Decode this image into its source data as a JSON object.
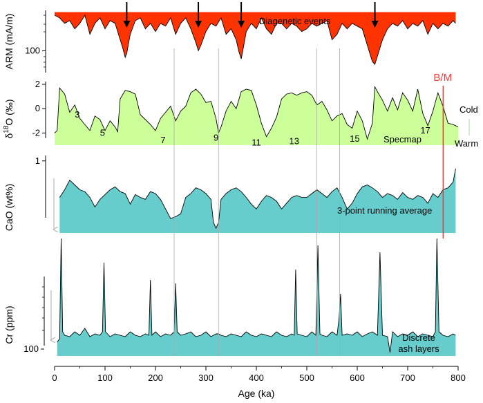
{
  "chart_data": [
    {
      "type": "area",
      "ylabel": "ARM (mA/m)",
      "annotation": "Diagenetic events",
      "fill_color": "#ff3300",
      "yticks": [
        100
      ],
      "diagenetic_event_ages": [
        143,
        285,
        370,
        635
      ],
      "x": [
        0,
        10,
        20,
        30,
        40,
        50,
        60,
        70,
        80,
        90,
        100,
        110,
        120,
        130,
        135,
        140,
        143,
        150,
        160,
        170,
        180,
        190,
        200,
        210,
        220,
        230,
        240,
        250,
        260,
        270,
        280,
        285,
        290,
        300,
        310,
        320,
        330,
        340,
        350,
        360,
        365,
        370,
        375,
        380,
        390,
        400,
        410,
        420,
        430,
        440,
        450,
        460,
        470,
        480,
        490,
        500,
        510,
        520,
        530,
        540,
        550,
        560,
        570,
        580,
        590,
        600,
        610,
        620,
        630,
        635,
        640,
        650,
        660,
        670,
        680,
        690,
        700,
        710,
        720,
        730,
        740,
        750,
        760,
        770,
        780,
        790,
        795
      ],
      "values": [
        165,
        160,
        150,
        155,
        140,
        150,
        165,
        130,
        150,
        160,
        140,
        155,
        150,
        120,
        105,
        88,
        95,
        130,
        155,
        160,
        140,
        150,
        135,
        150,
        145,
        160,
        130,
        150,
        160,
        140,
        115,
        100,
        110,
        135,
        150,
        145,
        160,
        130,
        140,
        120,
        100,
        85,
        110,
        135,
        150,
        140,
        160,
        140,
        130,
        150,
        150,
        140,
        150,
        145,
        135,
        140,
        150,
        145,
        150,
        155,
        120,
        130,
        150,
        140,
        150,
        145,
        140,
        110,
        80,
        75,
        90,
        120,
        140,
        150,
        145,
        155,
        140,
        150,
        145,
        155,
        130,
        150,
        140,
        150,
        145,
        155,
        150
      ]
    },
    {
      "type": "area",
      "ylabel": "δ18O (‰)",
      "series_label": "Specmap",
      "fill_color": "#ccff99",
      "ylim": [
        -3,
        2
      ],
      "yticks": [
        2,
        0,
        -2
      ],
      "stage_labels": [
        {
          "label": "3",
          "x": 45,
          "y": -0.5
        },
        {
          "label": "5",
          "x": 95,
          "y": -2
        },
        {
          "label": "7",
          "x": 215,
          "y": -2.6
        },
        {
          "label": "9",
          "x": 320,
          "y": -2.4
        },
        {
          "label": "11",
          "x": 400,
          "y": -2.8
        },
        {
          "label": "13",
          "x": 475,
          "y": -2.7
        },
        {
          "label": "15",
          "x": 595,
          "y": -2.5
        },
        {
          "label": "17",
          "x": 735,
          "y": -1.8
        }
      ],
      "scale_labels": [
        "Cold",
        "Warm"
      ],
      "boundary_label": "B/M",
      "boundary_age": 780,
      "boundary_color": "#ff3333",
      "x": [
        0,
        5,
        10,
        20,
        30,
        40,
        50,
        60,
        70,
        80,
        90,
        100,
        110,
        120,
        125,
        130,
        140,
        150,
        160,
        170,
        180,
        190,
        200,
        210,
        220,
        230,
        240,
        250,
        260,
        270,
        280,
        290,
        300,
        310,
        320,
        325,
        330,
        340,
        350,
        360,
        370,
        380,
        390,
        400,
        410,
        420,
        430,
        440,
        450,
        460,
        470,
        480,
        490,
        500,
        510,
        520,
        530,
        540,
        550,
        560,
        570,
        580,
        590,
        600,
        610,
        620,
        630,
        635,
        640,
        650,
        660,
        670,
        680,
        690,
        700,
        710,
        720,
        730,
        740,
        750,
        760,
        770,
        780,
        790,
        800
      ],
      "values": [
        -2,
        -1.8,
        1.7,
        1.2,
        -0.3,
        0.3,
        -0.8,
        -1.3,
        -1.8,
        -0.6,
        -0.9,
        -1.8,
        -1,
        -1.5,
        -1.9,
        0.8,
        1.5,
        1.4,
        1.2,
        -0.5,
        -0.9,
        -1.3,
        -1.8,
        -0.8,
        -0.3,
        0.2,
        -1,
        -0.2,
        0.2,
        1.3,
        1.6,
        1.2,
        0.5,
        0.6,
        -0.8,
        -2,
        -1.5,
        -0.2,
        0.6,
        0,
        1.4,
        1.6,
        1.5,
        0.3,
        -1.2,
        -2.3,
        -1.6,
        -0.7,
        0.8,
        1.2,
        1.3,
        1.1,
        1.3,
        1.4,
        1.1,
        0.3,
        0.6,
        -0.1,
        -1,
        -0.6,
        -0.4,
        -1.3,
        -1.6,
        -0.2,
        -1,
        -2.5,
        -1.2,
        1.8,
        1.4,
        0.7,
        -0.2,
        0.9,
        -0.1,
        1.3,
        0.7,
        -0.2,
        1.6,
        -0.4,
        -1.4,
        -0.2,
        1.3,
        0.2,
        -1.2,
        -1.3,
        -1.5
      ]
    },
    {
      "type": "area",
      "ylabel": "CaO (wt%)",
      "series_label": "3-point running average",
      "fill_color": "#66cccc",
      "yticks": [
        1
      ],
      "x": [
        10,
        20,
        30,
        40,
        50,
        60,
        70,
        80,
        90,
        100,
        110,
        120,
        130,
        140,
        150,
        160,
        170,
        180,
        190,
        200,
        210,
        220,
        230,
        240,
        250,
        260,
        270,
        280,
        290,
        300,
        310,
        315,
        320,
        325,
        330,
        340,
        350,
        360,
        370,
        380,
        390,
        400,
        410,
        420,
        430,
        440,
        450,
        460,
        470,
        480,
        490,
        500,
        510,
        520,
        530,
        540,
        550,
        560,
        570,
        580,
        590,
        600,
        610,
        620,
        630,
        640,
        650,
        660,
        670,
        680,
        690,
        700,
        710,
        720,
        730,
        740,
        750,
        760,
        770,
        780,
        790,
        795
      ],
      "values": [
        0.62,
        0.7,
        0.8,
        0.75,
        0.7,
        0.68,
        0.62,
        0.52,
        0.6,
        0.65,
        0.7,
        0.73,
        0.68,
        0.66,
        0.55,
        0.65,
        0.62,
        0.6,
        0.68,
        0.66,
        0.6,
        0.5,
        0.4,
        0.42,
        0.45,
        0.62,
        0.66,
        0.72,
        0.7,
        0.66,
        0.6,
        0.36,
        0.3,
        0.36,
        0.6,
        0.66,
        0.7,
        0.72,
        0.68,
        0.62,
        0.55,
        0.5,
        0.58,
        0.64,
        0.62,
        0.58,
        0.5,
        0.56,
        0.62,
        0.64,
        0.62,
        0.62,
        0.66,
        0.7,
        0.66,
        0.62,
        0.68,
        0.72,
        0.62,
        0.5,
        0.56,
        0.66,
        0.73,
        0.75,
        0.72,
        0.68,
        0.62,
        0.66,
        0.64,
        0.6,
        0.67,
        0.62,
        0.6,
        0.64,
        0.62,
        0.56,
        0.66,
        0.62,
        0.7,
        0.72,
        0.78,
        0.92
      ]
    },
    {
      "type": "area",
      "ylabel": "Cr (ppm)",
      "annotation": "Discrete ash layers",
      "fill_color": "#66cccc",
      "yticks": [
        100
      ],
      "x": [
        5,
        10,
        13,
        16,
        20,
        30,
        40,
        50,
        60,
        70,
        80,
        90,
        95,
        98,
        101,
        110,
        120,
        130,
        140,
        150,
        160,
        170,
        180,
        187,
        190,
        193,
        200,
        210,
        220,
        230,
        237,
        240,
        243,
        250,
        260,
        270,
        280,
        290,
        300,
        310,
        320,
        325,
        330,
        340,
        350,
        360,
        370,
        380,
        390,
        400,
        410,
        420,
        430,
        440,
        450,
        460,
        470,
        475,
        478,
        481,
        490,
        500,
        510,
        518,
        522,
        526,
        530,
        540,
        550,
        560,
        564,
        567,
        570,
        580,
        590,
        600,
        610,
        620,
        630,
        640,
        645,
        650,
        660,
        665,
        670,
        680,
        690,
        700,
        710,
        720,
        730,
        740,
        750,
        755,
        758,
        762,
        770,
        780,
        790,
        795
      ],
      "values": [
        110,
        115,
        260,
        125,
        120,
        118,
        125,
        120,
        130,
        118,
        122,
        120,
        125,
        225,
        125,
        118,
        122,
        120,
        118,
        125,
        120,
        118,
        122,
        120,
        200,
        120,
        125,
        118,
        122,
        120,
        125,
        195,
        125,
        120,
        122,
        125,
        118,
        120,
        125,
        118,
        122,
        122,
        120,
        118,
        122,
        120,
        118,
        125,
        120,
        118,
        122,
        120,
        118,
        125,
        120,
        118,
        122,
        120,
        215,
        122,
        120,
        118,
        125,
        120,
        250,
        122,
        120,
        118,
        125,
        120,
        145,
        180,
        120,
        122,
        120,
        125,
        118,
        122,
        125,
        120,
        240,
        120,
        118,
        95,
        125,
        118,
        122,
        120,
        125,
        118,
        122,
        120,
        118,
        125,
        260,
        125,
        120,
        118,
        122,
        120
      ]
    }
  ],
  "x_axis": {
    "label": "Age (ka)",
    "ticks": [
      0,
      100,
      200,
      300,
      400,
      500,
      600,
      700,
      800
    ],
    "range": [
      0,
      800
    ]
  },
  "reference_line_ages": [
    237,
    325,
    520,
    565,
    780
  ]
}
